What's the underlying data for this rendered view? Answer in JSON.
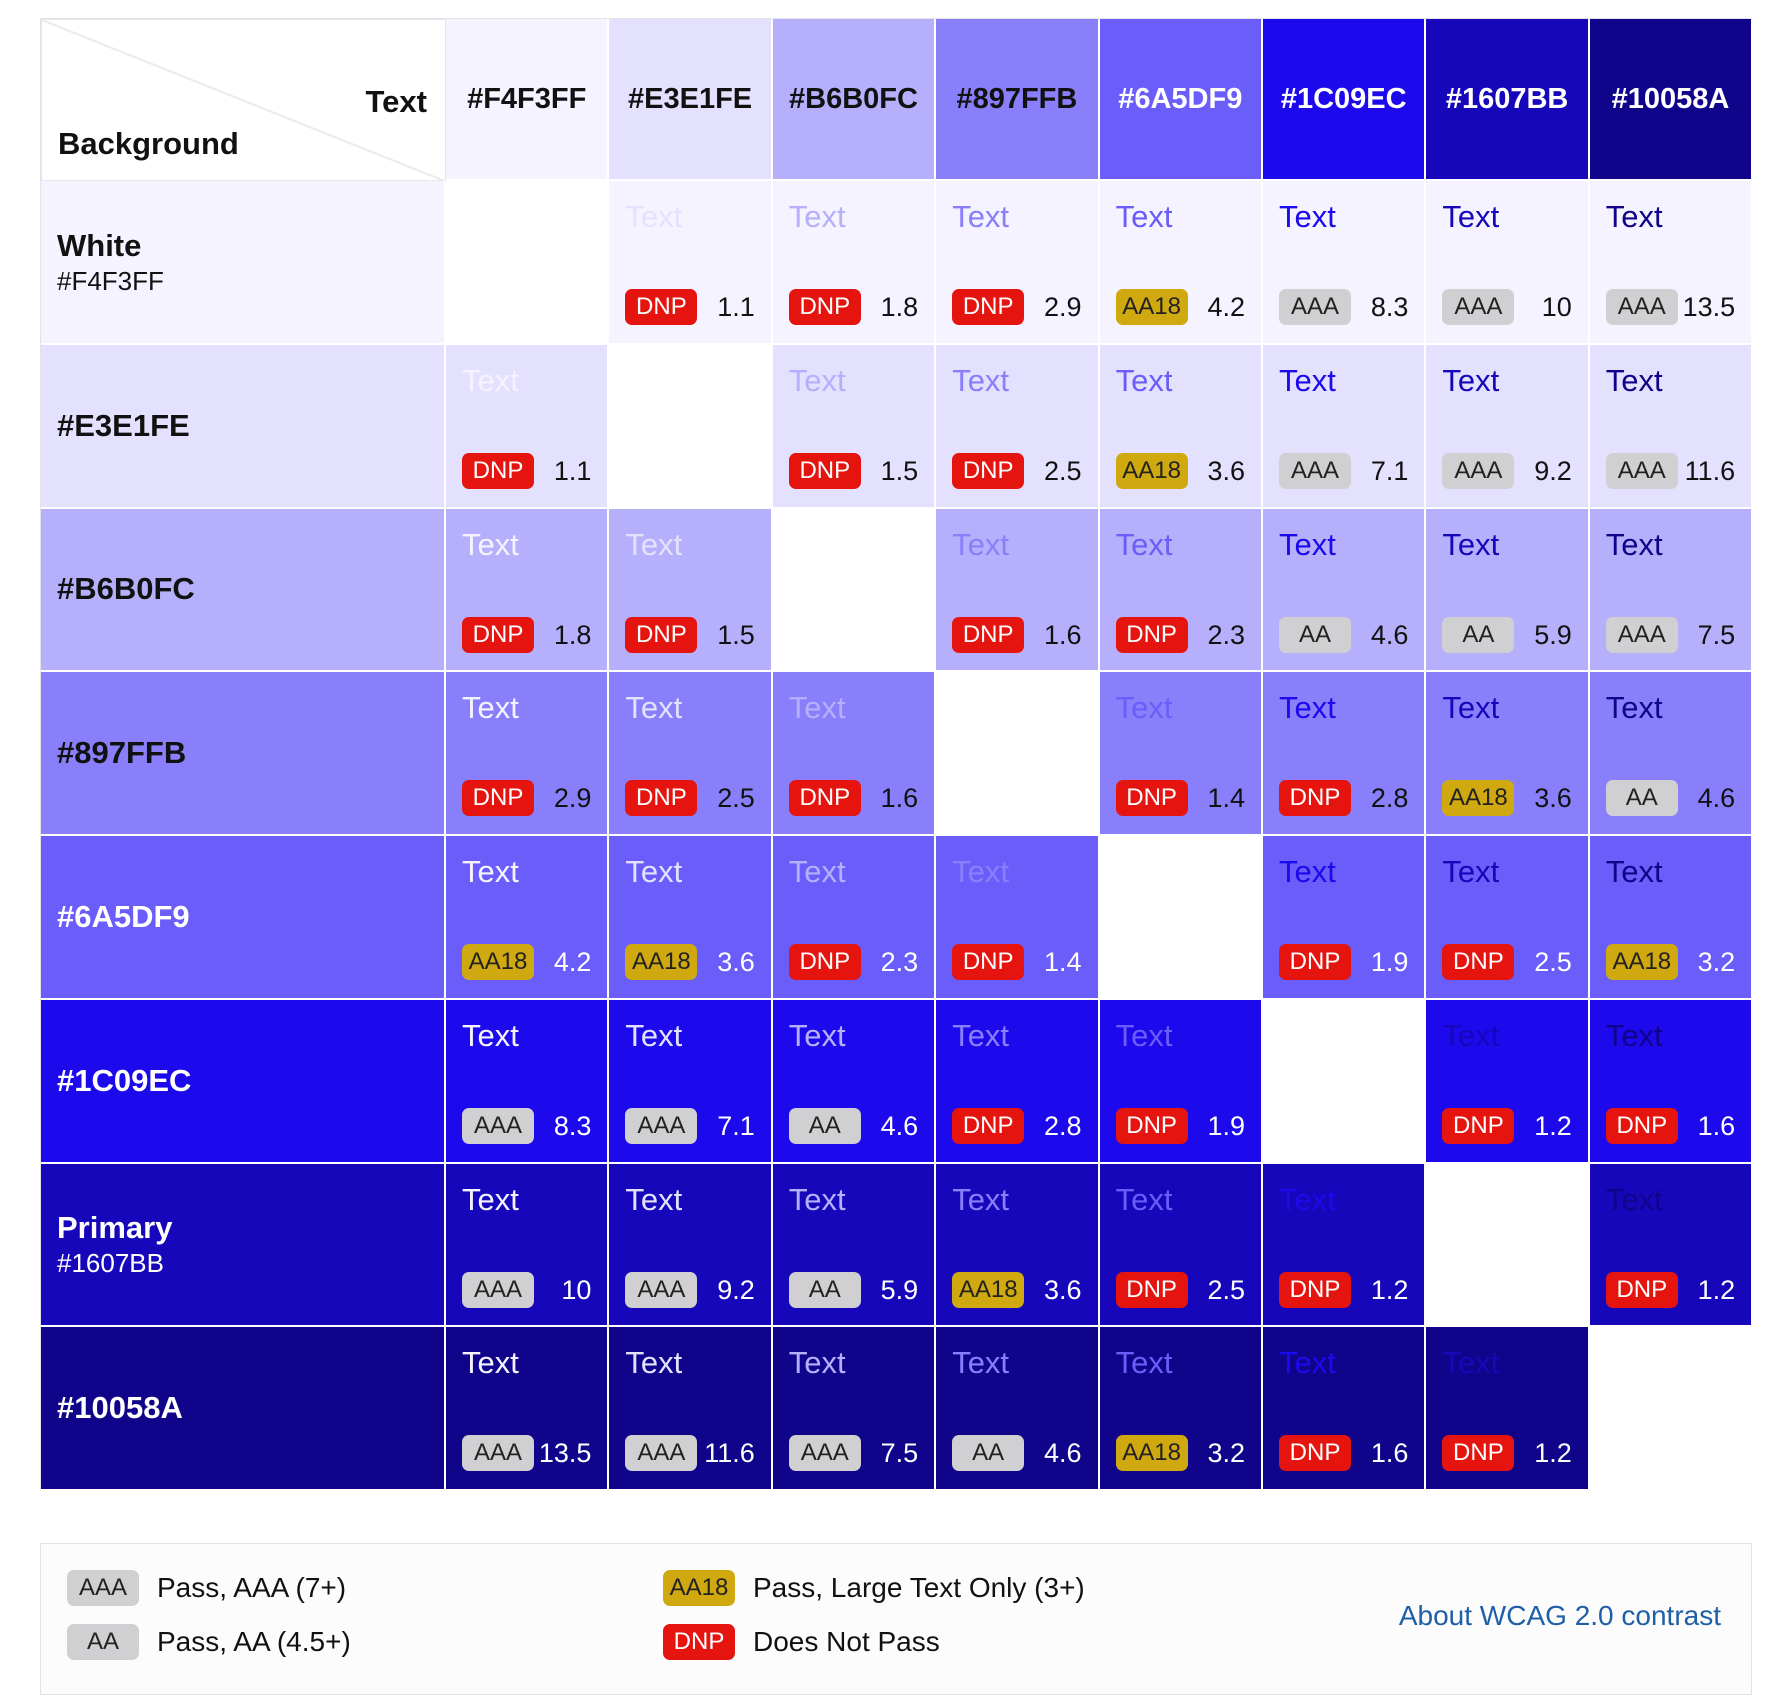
{
  "header": {
    "corner_text": "Text",
    "corner_background": "Background"
  },
  "columns": [
    {
      "hex": "#F4F3FF",
      "color": "#F4F3FF",
      "label_color": "#111111"
    },
    {
      "hex": "#E3E1FE",
      "color": "#E3E1FE",
      "label_color": "#111111"
    },
    {
      "hex": "#B6B0FC",
      "color": "#B6B0FC",
      "label_color": "#111111"
    },
    {
      "hex": "#897FFB",
      "color": "#897FFB",
      "label_color": "#111111"
    },
    {
      "hex": "#6A5DF9",
      "color": "#6A5DF9",
      "label_color": "#ffffff"
    },
    {
      "hex": "#1C09EC",
      "color": "#1C09EC",
      "label_color": "#ffffff"
    },
    {
      "hex": "#1607BB",
      "color": "#1607BB",
      "label_color": "#ffffff"
    },
    {
      "hex": "#10058A",
      "color": "#10058A",
      "label_color": "#ffffff"
    }
  ],
  "rows": [
    {
      "name": "White",
      "hex": "#F4F3FF",
      "color": "#F4F3FF",
      "label_color": "#111111",
      "cells": [
        null,
        {
          "rating": "DNP",
          "ratio": "1.1"
        },
        {
          "rating": "DNP",
          "ratio": "1.8"
        },
        {
          "rating": "DNP",
          "ratio": "2.9"
        },
        {
          "rating": "AA18",
          "ratio": "4.2"
        },
        {
          "rating": "AAA",
          "ratio": "8.3"
        },
        {
          "rating": "AAA",
          "ratio": "10"
        },
        {
          "rating": "AAA",
          "ratio": "13.5"
        }
      ]
    },
    {
      "name": "#E3E1FE",
      "hex": "",
      "color": "#E3E1FE",
      "label_color": "#111111",
      "cells": [
        {
          "rating": "DNP",
          "ratio": "1.1"
        },
        null,
        {
          "rating": "DNP",
          "ratio": "1.5"
        },
        {
          "rating": "DNP",
          "ratio": "2.5"
        },
        {
          "rating": "AA18",
          "ratio": "3.6"
        },
        {
          "rating": "AAA",
          "ratio": "7.1"
        },
        {
          "rating": "AAA",
          "ratio": "9.2"
        },
        {
          "rating": "AAA",
          "ratio": "11.6"
        }
      ]
    },
    {
      "name": "#B6B0FC",
      "hex": "",
      "color": "#B6B0FC",
      "label_color": "#111111",
      "cells": [
        {
          "rating": "DNP",
          "ratio": "1.8"
        },
        {
          "rating": "DNP",
          "ratio": "1.5"
        },
        null,
        {
          "rating": "DNP",
          "ratio": "1.6"
        },
        {
          "rating": "DNP",
          "ratio": "2.3"
        },
        {
          "rating": "AA",
          "ratio": "4.6"
        },
        {
          "rating": "AA",
          "ratio": "5.9"
        },
        {
          "rating": "AAA",
          "ratio": "7.5"
        }
      ]
    },
    {
      "name": "#897FFB",
      "hex": "",
      "color": "#897FFB",
      "label_color": "#111111",
      "cells": [
        {
          "rating": "DNP",
          "ratio": "2.9"
        },
        {
          "rating": "DNP",
          "ratio": "2.5"
        },
        {
          "rating": "DNP",
          "ratio": "1.6"
        },
        null,
        {
          "rating": "DNP",
          "ratio": "1.4"
        },
        {
          "rating": "DNP",
          "ratio": "2.8"
        },
        {
          "rating": "AA18",
          "ratio": "3.6"
        },
        {
          "rating": "AA",
          "ratio": "4.6"
        }
      ]
    },
    {
      "name": "#6A5DF9",
      "hex": "",
      "color": "#6A5DF9",
      "label_color": "#ffffff",
      "cells": [
        {
          "rating": "AA18",
          "ratio": "4.2"
        },
        {
          "rating": "AA18",
          "ratio": "3.6"
        },
        {
          "rating": "DNP",
          "ratio": "2.3"
        },
        {
          "rating": "DNP",
          "ratio": "1.4"
        },
        null,
        {
          "rating": "DNP",
          "ratio": "1.9"
        },
        {
          "rating": "DNP",
          "ratio": "2.5"
        },
        {
          "rating": "AA18",
          "ratio": "3.2"
        }
      ]
    },
    {
      "name": "#1C09EC",
      "hex": "",
      "color": "#1C09EC",
      "label_color": "#ffffff",
      "cells": [
        {
          "rating": "AAA",
          "ratio": "8.3"
        },
        {
          "rating": "AAA",
          "ratio": "7.1"
        },
        {
          "rating": "AA",
          "ratio": "4.6"
        },
        {
          "rating": "DNP",
          "ratio": "2.8"
        },
        {
          "rating": "DNP",
          "ratio": "1.9"
        },
        null,
        {
          "rating": "DNP",
          "ratio": "1.2"
        },
        {
          "rating": "DNP",
          "ratio": "1.6"
        }
      ]
    },
    {
      "name": "Primary",
      "hex": "#1607BB",
      "color": "#1607BB",
      "label_color": "#ffffff",
      "cells": [
        {
          "rating": "AAA",
          "ratio": "10"
        },
        {
          "rating": "AAA",
          "ratio": "9.2"
        },
        {
          "rating": "AA",
          "ratio": "5.9"
        },
        {
          "rating": "AA18",
          "ratio": "3.6"
        },
        {
          "rating": "DNP",
          "ratio": "2.5"
        },
        {
          "rating": "DNP",
          "ratio": "1.2"
        },
        null,
        {
          "rating": "DNP",
          "ratio": "1.2"
        }
      ]
    },
    {
      "name": "#10058A",
      "hex": "",
      "color": "#10058A",
      "label_color": "#ffffff",
      "cells": [
        {
          "rating": "AAA",
          "ratio": "13.5"
        },
        {
          "rating": "AAA",
          "ratio": "11.6"
        },
        {
          "rating": "AAA",
          "ratio": "7.5"
        },
        {
          "rating": "AA",
          "ratio": "4.6"
        },
        {
          "rating": "AA18",
          "ratio": "3.2"
        },
        {
          "rating": "DNP",
          "ratio": "1.6"
        },
        {
          "rating": "DNP",
          "ratio": "1.2"
        },
        null
      ]
    }
  ],
  "sample_text": "Text",
  "legend": {
    "items": [
      {
        "badge": "AAA",
        "text": "Pass, AAA (7+)"
      },
      {
        "badge": "AA",
        "text": "Pass, AA (4.5+)"
      },
      {
        "badge": "AA18",
        "text": "Pass, Large Text Only (3+)"
      },
      {
        "badge": "DNP",
        "text": "Does Not Pass"
      }
    ],
    "link": "About WCAG 2.0 contrast"
  },
  "colors": {
    "badge_aaa": "#d0d0d3",
    "badge_aa18": "#cfa90f",
    "badge_dnp": "#e5140f",
    "link": "#1f5fa6"
  },
  "chart_data": {
    "type": "table",
    "title": "",
    "row_header": "Background",
    "column_header": "Text",
    "columns": [
      "#F4F3FF",
      "#E3E1FE",
      "#B6B0FC",
      "#897FFB",
      "#6A5DF9",
      "#1C09EC",
      "#1607BB",
      "#10058A"
    ],
    "rows": [
      "#F4F3FF",
      "#E3E1FE",
      "#B6B0FC",
      "#897FFB",
      "#6A5DF9",
      "#1C09EC",
      "#1607BB",
      "#10058A"
    ],
    "contrast_ratios": [
      [
        null,
        1.1,
        1.8,
        2.9,
        4.2,
        8.3,
        10,
        13.5
      ],
      [
        1.1,
        null,
        1.5,
        2.5,
        3.6,
        7.1,
        9.2,
        11.6
      ],
      [
        1.8,
        1.5,
        null,
        1.6,
        2.3,
        4.6,
        5.9,
        7.5
      ],
      [
        2.9,
        2.5,
        1.6,
        null,
        1.4,
        2.8,
        3.6,
        4.6
      ],
      [
        4.2,
        3.6,
        2.3,
        1.4,
        null,
        1.9,
        2.5,
        3.2
      ],
      [
        8.3,
        7.1,
        4.6,
        2.8,
        1.9,
        null,
        1.2,
        1.6
      ],
      [
        10,
        9.2,
        5.9,
        3.6,
        2.5,
        1.2,
        null,
        1.2
      ],
      [
        13.5,
        11.6,
        7.5,
        4.6,
        3.2,
        1.6,
        1.2,
        null
      ]
    ],
    "ratings": [
      [
        null,
        "DNP",
        "DNP",
        "DNP",
        "AA18",
        "AAA",
        "AAA",
        "AAA"
      ],
      [
        "DNP",
        null,
        "DNP",
        "DNP",
        "AA18",
        "AAA",
        "AAA",
        "AAA"
      ],
      [
        "DNP",
        "DNP",
        null,
        "DNP",
        "DNP",
        "AA",
        "AA",
        "AAA"
      ],
      [
        "DNP",
        "DNP",
        "DNP",
        null,
        "DNP",
        "DNP",
        "AA18",
        "AA"
      ],
      [
        "AA18",
        "AA18",
        "DNP",
        "DNP",
        null,
        "DNP",
        "DNP",
        "AA18"
      ],
      [
        "AAA",
        "AAA",
        "AA",
        "DNP",
        "DNP",
        null,
        "DNP",
        "DNP"
      ],
      [
        "AAA",
        "AAA",
        "AA",
        "AA18",
        "DNP",
        "DNP",
        null,
        "DNP"
      ],
      [
        "AAA",
        "AAA",
        "AAA",
        "AA",
        "AA18",
        "DNP",
        "DNP",
        null
      ]
    ]
  }
}
